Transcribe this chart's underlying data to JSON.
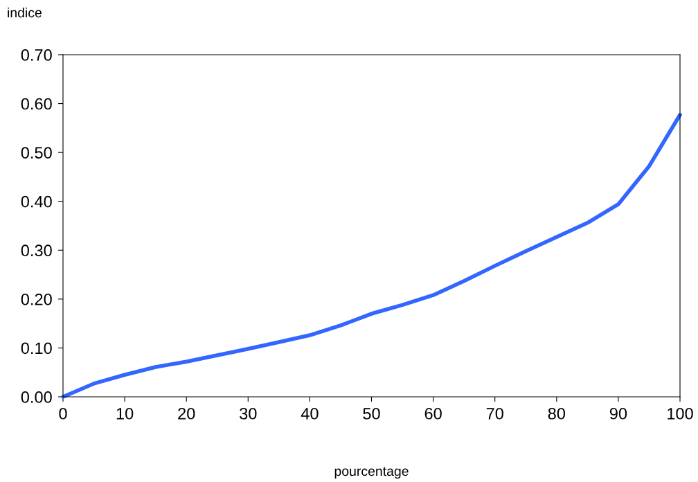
{
  "chart_data": {
    "type": "line",
    "xlabel": "pourcentage",
    "ylabel": "indice",
    "x": [
      0,
      5,
      10,
      15,
      20,
      25,
      30,
      35,
      40,
      45,
      50,
      55,
      60,
      65,
      70,
      75,
      80,
      85,
      90,
      95,
      100
    ],
    "series": [
      {
        "color": "#3366ff",
        "values": [
          0,
          0.027,
          0.045,
          0.061,
          0.072,
          0.085,
          0.098,
          0.112,
          0.126,
          0.146,
          0.17,
          0.188,
          0.208,
          0.237,
          0.268,
          0.298,
          0.327,
          0.356,
          0.394,
          0.472,
          0.577
        ]
      }
    ],
    "xlim": [
      0,
      100
    ],
    "xticks": [
      0,
      10,
      20,
      30,
      40,
      50,
      60,
      70,
      80,
      90,
      100
    ],
    "ylim": [
      0,
      0.7
    ],
    "yticks": [
      {
        "value": 0,
        "label": "0.00"
      },
      {
        "value": 0.1,
        "label": "0.10"
      },
      {
        "value": 0.2,
        "label": "0.20"
      },
      {
        "value": 0.3,
        "label": "0.30"
      },
      {
        "value": 0.4,
        "label": "0.40"
      },
      {
        "value": 0.5,
        "label": "0.50"
      },
      {
        "value": 0.6,
        "label": "0.60"
      },
      {
        "value": 0.7,
        "label": "0.70"
      }
    ],
    "grid": false,
    "legend": false,
    "marker": "none",
    "line_style": "solid"
  }
}
